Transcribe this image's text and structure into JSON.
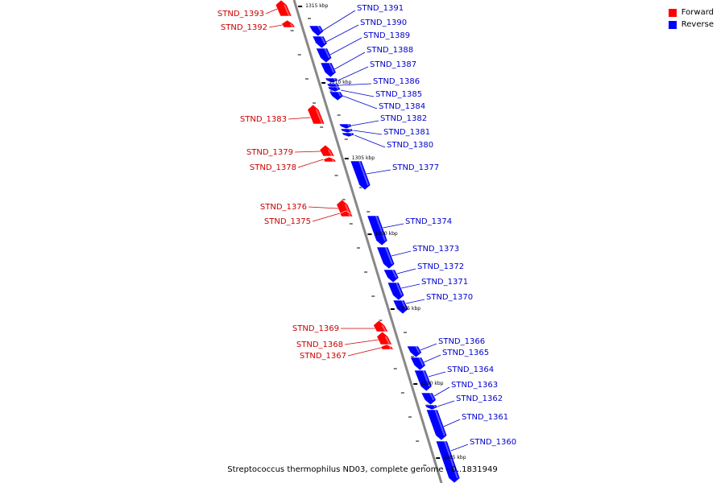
{
  "caption": "Streptococcus thermophilus ND03, complete genome - 0..1831949",
  "legend": [
    {
      "label": "Forward",
      "color": "#ff0000"
    },
    {
      "label": "Reverse",
      "color": "#0000ff"
    }
  ],
  "colors": {
    "forward": "#ff0000",
    "reverse": "#0000ff",
    "forward_label": "#cc0000",
    "reverse_label": "#0000cc",
    "backbone": "#888888"
  },
  "ticks": [
    "1315 kbp",
    "1310 kbp",
    "1305 kbp",
    "1300 kbp",
    "1295 kbp",
    "1290 kbp",
    "1285 kbp"
  ],
  "genes": [
    {
      "name": "STND_1393",
      "strand": "forward"
    },
    {
      "name": "STND_1392",
      "strand": "forward"
    },
    {
      "name": "STND_1391",
      "strand": "reverse"
    },
    {
      "name": "STND_1390",
      "strand": "reverse"
    },
    {
      "name": "STND_1389",
      "strand": "reverse"
    },
    {
      "name": "STND_1388",
      "strand": "reverse"
    },
    {
      "name": "STND_1387",
      "strand": "reverse"
    },
    {
      "name": "STND_1386",
      "strand": "reverse"
    },
    {
      "name": "STND_1385",
      "strand": "reverse"
    },
    {
      "name": "STND_1384",
      "strand": "reverse"
    },
    {
      "name": "STND_1383",
      "strand": "forward"
    },
    {
      "name": "STND_1382",
      "strand": "reverse"
    },
    {
      "name": "STND_1381",
      "strand": "reverse"
    },
    {
      "name": "STND_1380",
      "strand": "reverse"
    },
    {
      "name": "STND_1379",
      "strand": "forward"
    },
    {
      "name": "STND_1378",
      "strand": "forward"
    },
    {
      "name": "STND_1377",
      "strand": "reverse"
    },
    {
      "name": "STND_1376",
      "strand": "forward"
    },
    {
      "name": "STND_1375",
      "strand": "forward"
    },
    {
      "name": "STND_1374",
      "strand": "reverse"
    },
    {
      "name": "STND_1373",
      "strand": "reverse"
    },
    {
      "name": "STND_1372",
      "strand": "reverse"
    },
    {
      "name": "STND_1371",
      "strand": "reverse"
    },
    {
      "name": "STND_1370",
      "strand": "reverse"
    },
    {
      "name": "STND_1369",
      "strand": "forward"
    },
    {
      "name": "STND_1368",
      "strand": "forward"
    },
    {
      "name": "STND_1367",
      "strand": "forward"
    },
    {
      "name": "STND_1366",
      "strand": "reverse"
    },
    {
      "name": "STND_1365",
      "strand": "reverse"
    },
    {
      "name": "STND_1364",
      "strand": "reverse"
    },
    {
      "name": "STND_1363",
      "strand": "reverse"
    },
    {
      "name": "STND_1362",
      "strand": "reverse"
    },
    {
      "name": "STND_1361",
      "strand": "reverse"
    },
    {
      "name": "STND_1360",
      "strand": "reverse"
    }
  ]
}
